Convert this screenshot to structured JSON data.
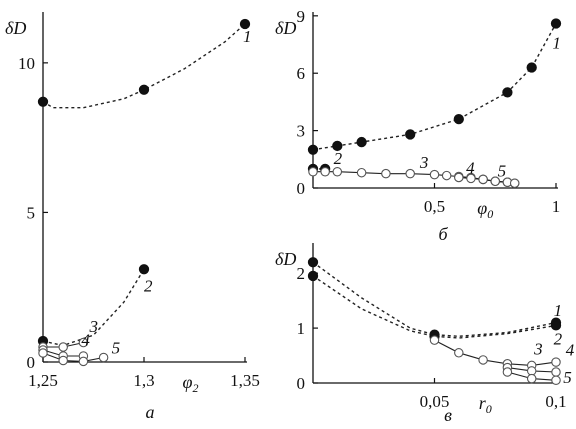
{
  "chart_data": [
    {
      "type": "scatter",
      "panel_label": "а",
      "ylabel": "δD",
      "xlabel": "φ2",
      "xlim": [
        1.25,
        1.35
      ],
      "ylim": [
        0,
        11.7
      ],
      "x_ticks": [
        "1,25",
        "1,3",
        "1,35"
      ],
      "x_tick_values": [
        1.25,
        1.3,
        1.35
      ],
      "y_ticks": [
        "0",
        "5",
        "10"
      ],
      "y_tick_values": [
        0,
        5,
        10
      ],
      "series": [
        {
          "name": "1",
          "marker": "filled",
          "line": "dashed",
          "points": [
            [
              1.25,
              8.7
            ],
            [
              1.3,
              9.1
            ],
            [
              1.35,
              11.3
            ]
          ],
          "curve": [
            [
              1.25,
              8.7
            ],
            [
              1.255,
              8.5
            ],
            [
              1.27,
              8.5
            ],
            [
              1.29,
              8.8
            ],
            [
              1.3,
              9.1
            ],
            [
              1.32,
              9.8
            ],
            [
              1.34,
              10.7
            ],
            [
              1.35,
              11.3
            ]
          ]
        },
        {
          "name": "2",
          "marker": "filled",
          "line": "dashed",
          "points": [
            [
              1.25,
              0.7
            ],
            [
              1.3,
              3.1
            ]
          ],
          "curve": [
            [
              1.25,
              0.7
            ],
            [
              1.26,
              0.55
            ],
            [
              1.275,
              0.9
            ],
            [
              1.29,
              2.0
            ],
            [
              1.3,
              3.1
            ]
          ]
        },
        {
          "name": "3",
          "marker": "open",
          "line": "solid",
          "points": [
            [
              1.25,
              0.5
            ],
            [
              1.26,
              0.5
            ],
            [
              1.27,
              0.65
            ]
          ],
          "curve": [
            [
              1.25,
              0.5
            ],
            [
              1.26,
              0.5
            ],
            [
              1.27,
              0.65
            ]
          ]
        },
        {
          "name": "4",
          "marker": "open",
          "line": "solid",
          "points": [
            [
              1.25,
              0.4
            ],
            [
              1.26,
              0.2
            ],
            [
              1.27,
              0.2
            ]
          ],
          "curve": [
            [
              1.25,
              0.4
            ],
            [
              1.26,
              0.2
            ],
            [
              1.27,
              0.2
            ]
          ]
        },
        {
          "name": "5",
          "marker": "open",
          "line": "solid",
          "points": [
            [
              1.25,
              0.3
            ],
            [
              1.26,
              0.05
            ],
            [
              1.27,
              0.02
            ],
            [
              1.28,
              0.15
            ]
          ],
          "curve": [
            [
              1.25,
              0.3
            ],
            [
              1.26,
              0.05
            ],
            [
              1.27,
              0.02
            ],
            [
              1.28,
              0.15
            ]
          ]
        }
      ],
      "annotations": [
        {
          "text": "1",
          "x": 1.349,
          "y": 10.7
        },
        {
          "text": "2",
          "x": 1.3,
          "y": 2.35
        },
        {
          "text": "3",
          "x": 1.273,
          "y": 1.0
        },
        {
          "text": "4",
          "x": 1.269,
          "y": 0.55
        },
        {
          "text": "5",
          "x": 1.284,
          "y": 0.28
        }
      ]
    },
    {
      "type": "scatter",
      "panel_label": "б",
      "ylabel": "δD",
      "xlabel": "φ0",
      "xlim": [
        0,
        1
      ],
      "ylim": [
        0,
        9.2
      ],
      "x_ticks": [
        "0,5",
        "1"
      ],
      "x_tick_values": [
        0.5,
        1
      ],
      "y_ticks": [
        "0",
        "3",
        "6",
        "9"
      ],
      "y_tick_values": [
        0,
        3,
        6,
        9
      ],
      "series": [
        {
          "name": "1",
          "marker": "filled",
          "line": "dashed",
          "points": [
            [
              0,
              2.0
            ],
            [
              0.1,
              2.2
            ],
            [
              0.2,
              2.4
            ],
            [
              0.4,
              2.8
            ],
            [
              0.6,
              3.6
            ],
            [
              0.8,
              5.0
            ],
            [
              0.9,
              6.3
            ],
            [
              1.0,
              8.6
            ]
          ]
        },
        {
          "name": "2",
          "marker": "filled",
          "line": "dashed",
          "points": [
            [
              0,
              1.0
            ],
            [
              0.05,
              1.0
            ]
          ]
        },
        {
          "name": "3",
          "marker": "open",
          "line": "solid",
          "points": [
            [
              0,
              0.85
            ],
            [
              0.05,
              0.85
            ],
            [
              0.1,
              0.85
            ],
            [
              0.2,
              0.8
            ],
            [
              0.3,
              0.75
            ],
            [
              0.4,
              0.75
            ],
            [
              0.5,
              0.7
            ],
            [
              0.55,
              0.65
            ],
            [
              0.6,
              0.6
            ],
            [
              0.65,
              0.55
            ],
            [
              0.7,
              0.45
            ],
            [
              0.75,
              0.35
            ],
            [
              0.8,
              0.3
            ],
            [
              0.83,
              0.25
            ]
          ]
        },
        {
          "name": "4",
          "marker": "open",
          "line": "solid",
          "points": [
            [
              0.6,
              0.55
            ],
            [
              0.65,
              0.5
            ],
            [
              0.7,
              0.45
            ],
            [
              0.75,
              0.35
            ],
            [
              0.8,
              0.3
            ]
          ]
        },
        {
          "name": "5",
          "marker": "open",
          "line": "solid",
          "points": [
            [
              0.7,
              0.45
            ],
            [
              0.75,
              0.35
            ],
            [
              0.8,
              0.3
            ],
            [
              0.83,
              0.25
            ]
          ]
        }
      ],
      "annotations": [
        {
          "text": "1",
          "x": 0.985,
          "y": 7.3
        },
        {
          "text": "2",
          "x": 0.085,
          "y": 1.25
        },
        {
          "text": "3",
          "x": 0.44,
          "y": 1.05
        },
        {
          "text": "4",
          "x": 0.63,
          "y": 0.75
        },
        {
          "text": "5",
          "x": 0.76,
          "y": 0.6
        }
      ]
    },
    {
      "type": "scatter",
      "panel_label": "в",
      "ylabel": "δD",
      "xlabel": "r0",
      "xlim": [
        0,
        0.1
      ],
      "ylim": [
        0,
        2.55
      ],
      "x_ticks": [
        "0,05",
        "0,1"
      ],
      "x_tick_values": [
        0.05,
        0.1
      ],
      "y_ticks": [
        "0",
        "1",
        "2"
      ],
      "y_tick_values": [
        0,
        1,
        2
      ],
      "series": [
        {
          "name": "1",
          "marker": "filled",
          "line": "dashed",
          "points": [
            [
              0,
              2.2
            ],
            [
              0.05,
              0.88
            ],
            [
              0.1,
              1.1
            ]
          ],
          "curve": [
            [
              0,
              2.2
            ],
            [
              0.02,
              1.55
            ],
            [
              0.04,
              1.0
            ],
            [
              0.05,
              0.88
            ],
            [
              0.06,
              0.85
            ],
            [
              0.08,
              0.92
            ],
            [
              0.1,
              1.1
            ]
          ]
        },
        {
          "name": "2",
          "marker": "filled",
          "line": "dashed",
          "points": [
            [
              0,
              1.95
            ],
            [
              0.05,
              0.85
            ],
            [
              0.1,
              1.05
            ]
          ],
          "curve": [
            [
              0,
              1.95
            ],
            [
              0.02,
              1.35
            ],
            [
              0.04,
              0.95
            ],
            [
              0.05,
              0.85
            ],
            [
              0.06,
              0.82
            ],
            [
              0.08,
              0.9
            ],
            [
              0.1,
              1.05
            ]
          ]
        },
        {
          "name": "3",
          "marker": "open",
          "line": "solid",
          "points": [
            [
              0.05,
              0.78
            ],
            [
              0.06,
              0.55
            ],
            [
              0.07,
              0.42
            ],
            [
              0.08,
              0.35
            ],
            [
              0.09,
              0.32
            ],
            [
              0.1,
              0.38
            ]
          ]
        },
        {
          "name": "4",
          "marker": "open",
          "line": "solid",
          "points": [
            [
              0.08,
              0.28
            ],
            [
              0.09,
              0.22
            ],
            [
              0.1,
              0.2
            ]
          ]
        },
        {
          "name": "5",
          "marker": "open",
          "line": "solid",
          "points": [
            [
              0.08,
              0.2
            ],
            [
              0.09,
              0.08
            ],
            [
              0.1,
              0.05
            ]
          ]
        }
      ],
      "annotations": [
        {
          "text": "1",
          "x": 0.099,
          "y": 1.22
        },
        {
          "text": "2",
          "x": 0.099,
          "y": 0.7
        },
        {
          "text": "3",
          "x": 0.091,
          "y": 0.52
        },
        {
          "text": "4",
          "x": 0.104,
          "y": 0.5
        },
        {
          "text": "5",
          "x": 0.103,
          "y": 0.0
        }
      ]
    }
  ]
}
